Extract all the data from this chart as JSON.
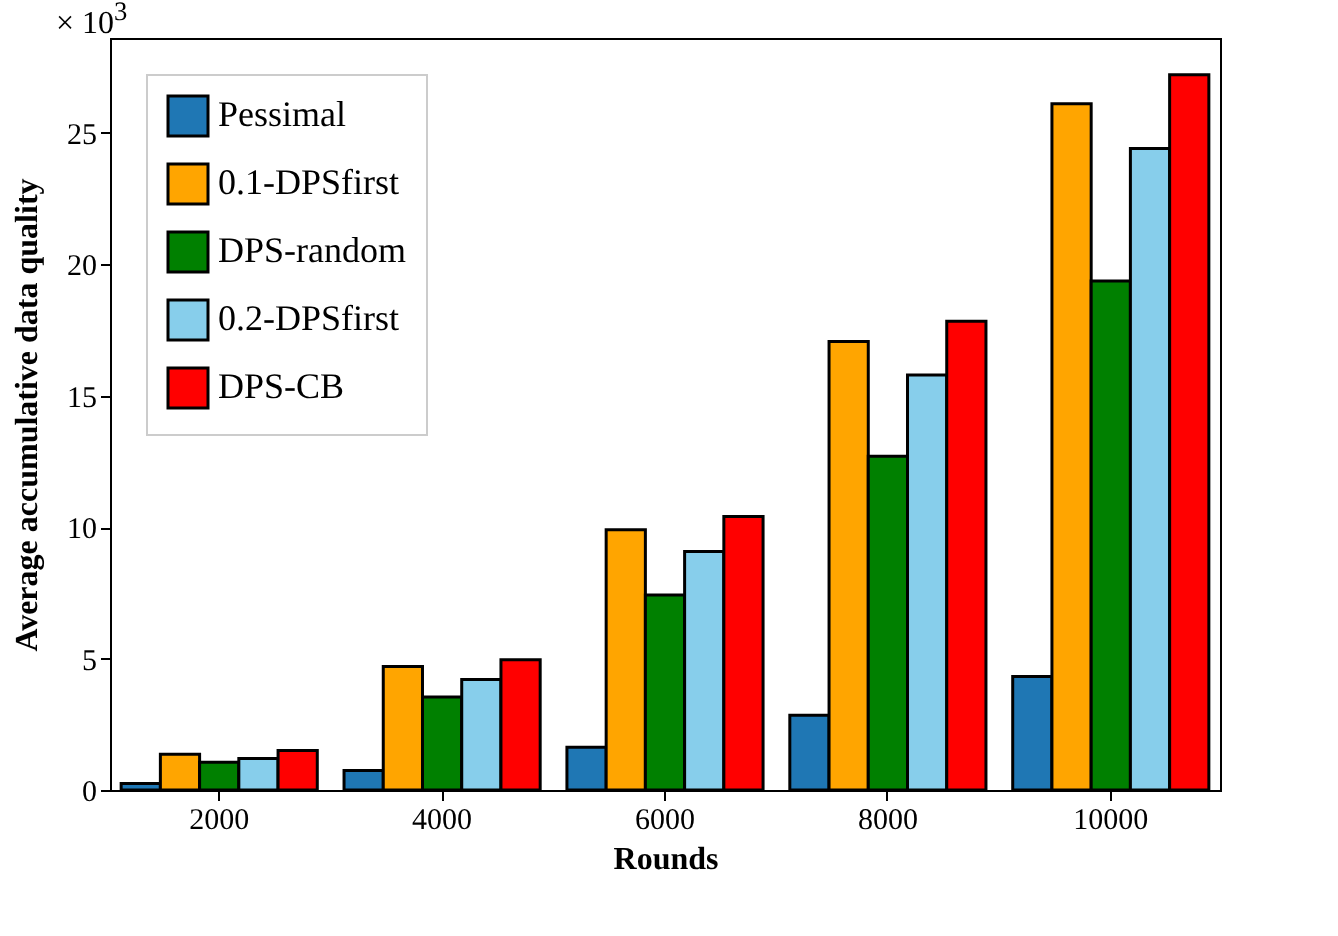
{
  "chart_data": {
    "type": "bar",
    "xlabel": "Rounds",
    "ylabel": "Average accumulative data quality",
    "annotations": [
      "× 10$^{3}$"
    ],
    "categories": [
      "2000",
      "4000",
      "6000",
      "8000",
      "10000"
    ],
    "series": [
      {
        "name": "Pessimal",
        "color": "#1f77b4",
        "values": [
          0.25,
          0.74,
          1.63,
          2.84,
          4.32
        ]
      },
      {
        "name": "0.1-DPSfirst",
        "color": "#ffa500",
        "values": [
          1.36,
          4.7,
          9.9,
          17.06,
          26.1
        ]
      },
      {
        "name": "DPS-random",
        "color": "#008000",
        "values": [
          1.06,
          3.54,
          7.42,
          12.69,
          19.36
        ]
      },
      {
        "name": "0.2-DPSfirst",
        "color": "#87ceeb",
        "values": [
          1.2,
          4.2,
          9.07,
          15.78,
          24.4
        ]
      },
      {
        "name": "DPS-CB",
        "color": "#ff0000",
        "values": [
          1.5,
          4.95,
          10.4,
          17.83,
          27.2
        ]
      }
    ],
    "ylim": [
      0,
      28.6
    ],
    "yticks": [
      0,
      5,
      10,
      15,
      20,
      25
    ],
    "grid": false,
    "legend": "top left"
  }
}
